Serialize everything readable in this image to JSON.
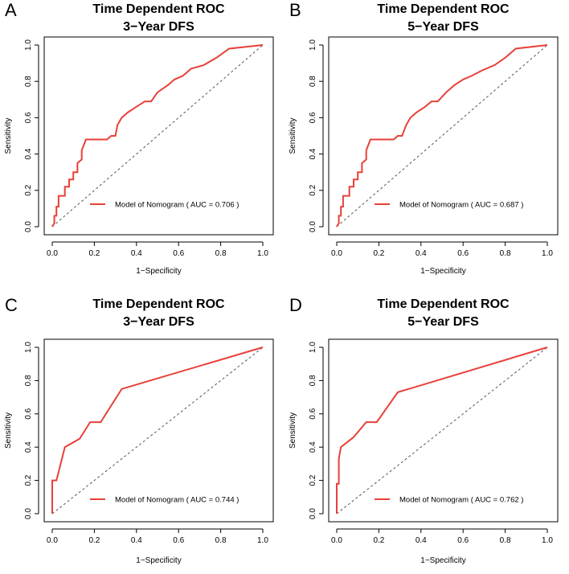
{
  "colors": {
    "roc": "#e8403a",
    "diagonal": "#555555",
    "axis": "#000000"
  },
  "chart_data": [
    {
      "panel": "A",
      "type": "line",
      "title": [
        "Time Dependent ROC",
        "3−Year DFS"
      ],
      "xlabel": "1−Specificity",
      "ylabel": "Sensitivity",
      "xlim": [
        0,
        1
      ],
      "ylim": [
        0,
        1
      ],
      "ticks": [
        "0.0",
        "0.2",
        "0.4",
        "0.6",
        "0.8",
        "1.0"
      ],
      "legend": {
        "prefix": "Model of Nomogram ( AUC  = ",
        "auc": "0.706",
        "suffix": " )",
        "placement": "bottom-right"
      },
      "series": [
        {
          "name": "Model of Nomogram",
          "x": [
            0,
            0.01,
            0.01,
            0.02,
            0.02,
            0.03,
            0.03,
            0.06,
            0.06,
            0.08,
            0.08,
            0.1,
            0.1,
            0.12,
            0.12,
            0.14,
            0.14,
            0.16,
            0.18,
            0.26,
            0.28,
            0.3,
            0.31,
            0.33,
            0.36,
            0.4,
            0.44,
            0.47,
            0.5,
            0.55,
            0.58,
            0.62,
            0.66,
            0.72,
            0.78,
            0.84,
            1.0
          ],
          "y": [
            0,
            0.02,
            0.06,
            0.06,
            0.11,
            0.11,
            0.17,
            0.17,
            0.22,
            0.22,
            0.26,
            0.26,
            0.3,
            0.3,
            0.35,
            0.37,
            0.42,
            0.48,
            0.48,
            0.48,
            0.5,
            0.5,
            0.56,
            0.6,
            0.63,
            0.66,
            0.69,
            0.69,
            0.74,
            0.78,
            0.81,
            0.83,
            0.87,
            0.89,
            0.93,
            0.98,
            1.0
          ]
        }
      ]
    },
    {
      "panel": "B",
      "type": "line",
      "title": [
        "Time Dependent ROC",
        "5−Year DFS"
      ],
      "xlabel": "1−Specificity",
      "ylabel": "Sensitivity",
      "xlim": [
        0,
        1
      ],
      "ylim": [
        0,
        1
      ],
      "ticks": [
        "0.0",
        "0.2",
        "0.4",
        "0.6",
        "0.8",
        "1.0"
      ],
      "legend": {
        "prefix": "Model of Nomogram ( AUC  = ",
        "auc": "0.687",
        "suffix": " )",
        "placement": "bottom-right"
      },
      "series": [
        {
          "name": "Model of Nomogram",
          "x": [
            0,
            0.01,
            0.01,
            0.02,
            0.02,
            0.03,
            0.03,
            0.06,
            0.06,
            0.08,
            0.08,
            0.1,
            0.1,
            0.12,
            0.12,
            0.14,
            0.14,
            0.16,
            0.18,
            0.27,
            0.29,
            0.31,
            0.33,
            0.35,
            0.38,
            0.42,
            0.45,
            0.48,
            0.52,
            0.56,
            0.6,
            0.64,
            0.69,
            0.75,
            0.8,
            0.85,
            1.0
          ],
          "y": [
            0,
            0.02,
            0.06,
            0.06,
            0.11,
            0.11,
            0.17,
            0.17,
            0.22,
            0.22,
            0.26,
            0.26,
            0.3,
            0.3,
            0.35,
            0.37,
            0.42,
            0.48,
            0.48,
            0.48,
            0.5,
            0.5,
            0.56,
            0.6,
            0.63,
            0.66,
            0.69,
            0.69,
            0.74,
            0.78,
            0.81,
            0.83,
            0.86,
            0.89,
            0.93,
            0.98,
            1.0
          ]
        }
      ]
    },
    {
      "panel": "C",
      "type": "line",
      "title": [
        "Time Dependent ROC",
        "3−Year DFS"
      ],
      "xlabel": "1−Specificity",
      "ylabel": "Sensitivity",
      "xlim": [
        0,
        1
      ],
      "ylim": [
        0,
        1
      ],
      "ticks": [
        "0.0",
        "0.2",
        "0.4",
        "0.6",
        "0.8",
        "1.0"
      ],
      "legend": {
        "prefix": "Model of Nomogram ( AUC  = ",
        "auc": "0.744",
        "suffix": " )",
        "placement": "bottom-right"
      },
      "series": [
        {
          "name": "Model of Nomogram",
          "x": [
            0,
            0,
            0.02,
            0.04,
            0.06,
            0.13,
            0.18,
            0.23,
            0.33,
            1.0
          ],
          "y": [
            0,
            0.2,
            0.2,
            0.3,
            0.4,
            0.45,
            0.55,
            0.55,
            0.75,
            1.0
          ]
        }
      ]
    },
    {
      "panel": "D",
      "type": "line",
      "title": [
        "Time Dependent ROC",
        "5−Year DFS"
      ],
      "xlabel": "1−Specificity",
      "ylabel": "Sensitivity",
      "xlim": [
        0,
        1
      ],
      "ylim": [
        0,
        1
      ],
      "ticks": [
        "0.0",
        "0.2",
        "0.4",
        "0.6",
        "0.8",
        "1.0"
      ],
      "legend": {
        "prefix": "Model of Nomogram ( AUC  = ",
        "auc": "0.762",
        "suffix": " )",
        "placement": "bottom-right"
      },
      "series": [
        {
          "name": "Model of Nomogram",
          "x": [
            0,
            0,
            0.01,
            0.01,
            0.02,
            0.03,
            0.08,
            0.14,
            0.19,
            0.29,
            1.0
          ],
          "y": [
            0,
            0.18,
            0.18,
            0.33,
            0.4,
            0.41,
            0.46,
            0.55,
            0.55,
            0.73,
            1.0
          ]
        }
      ]
    }
  ]
}
